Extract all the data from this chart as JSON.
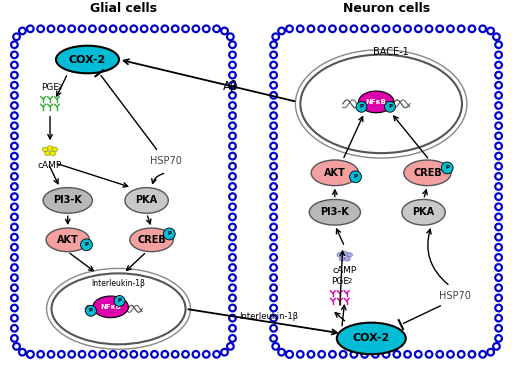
{
  "title_glial": "Glial cells",
  "title_neuron": "Neuron cells",
  "cox2_color": "#00bcd4",
  "pi3k_color": "#b0b0b0",
  "pka_color": "#c0c0c0",
  "akt_color": "#f4a0a0",
  "creb_color": "#f4a0a0",
  "p_color": "#00bcd4",
  "nfkb_color": "#dd00aa",
  "hsp70_text": "HSP70",
  "ab_text": "Aβ",
  "il1b_text": "Interleukin-1β",
  "bace1_text": "BACE-1",
  "pge2_color_glial": "#22bb22",
  "pge2_color_neuron": "#dd00aa",
  "camp_color_glial": "#eeee00",
  "camp_color_neuron": "#aaaaee"
}
